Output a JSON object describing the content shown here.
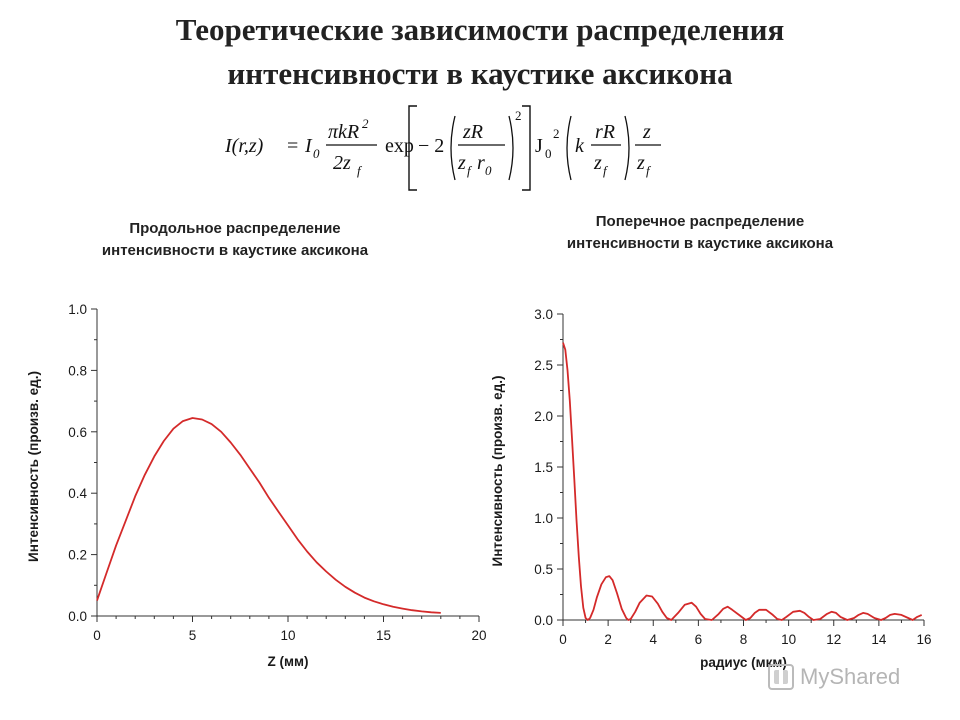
{
  "title_line1": "Теоретические зависимости распределения",
  "title_line2": "интенсивности в каустике аксикона",
  "formula": {
    "lhs": "I(r,z)",
    "eq": "=",
    "i0": "I",
    "i0_sub": "0",
    "frac1_num": "πkR",
    "frac1_num_sup": "2",
    "frac1_den": "2z",
    "frac1_den_sub": "f",
    "exp": "exp",
    "minus2": "− 2",
    "frac2_num": "zR",
    "frac2_den": "z",
    "frac2_den_sub": "f",
    "frac2_den_r": "r",
    "frac2_den_r_sub": "0",
    "sq": "2",
    "j0": "J",
    "j0_sub": "0",
    "j0_sup": "2",
    "k": "k",
    "frac3_num": "rR",
    "frac3_den": "z",
    "frac3_den_sub": "f",
    "frac4_num": "z",
    "frac4_den": "z",
    "frac4_den_sub": "f"
  },
  "subtitle_left_line1": "Продольное распределение",
  "subtitle_left_line2": "интенсивности в каустике аксикона",
  "subtitle_right_line1": "Поперечное распределение",
  "subtitle_right_line2": "интенсивности в каустике аксикона",
  "watermark": "MyShared",
  "chart_data": [
    {
      "type": "line",
      "xlabel": "Z (мм)",
      "ylabel": "Интенсивность (произв. ед.)",
      "xlim": [
        0,
        20
      ],
      "ylim": [
        0,
        1.0
      ],
      "xticks": [
        "0",
        "5",
        "10",
        "15",
        "20"
      ],
      "yticks": [
        "0.0",
        "0.2",
        "0.4",
        "0.6",
        "0.8",
        "1.0"
      ],
      "grid": false,
      "color": "#d42a2a",
      "series": [
        {
          "x": [
            0,
            0.5,
            1,
            1.5,
            2,
            2.5,
            3,
            3.5,
            4,
            4.5,
            5,
            5.5,
            6,
            6.5,
            7,
            7.5,
            8,
            8.5,
            9,
            9.5,
            10,
            10.5,
            11,
            11.5,
            12,
            12.5,
            13,
            13.5,
            14,
            14.5,
            15,
            15.5,
            16,
            16.5,
            17,
            17.5,
            18
          ],
          "y": [
            0.05,
            0.14,
            0.23,
            0.31,
            0.39,
            0.46,
            0.52,
            0.57,
            0.61,
            0.635,
            0.645,
            0.64,
            0.625,
            0.6,
            0.565,
            0.525,
            0.48,
            0.435,
            0.385,
            0.34,
            0.295,
            0.25,
            0.21,
            0.175,
            0.145,
            0.118,
            0.095,
            0.076,
            0.06,
            0.048,
            0.038,
            0.03,
            0.024,
            0.019,
            0.015,
            0.012,
            0.01
          ]
        }
      ]
    },
    {
      "type": "line",
      "xlabel": "радиус (мкм)",
      "ylabel": "Интенсивность (произв. ед.)",
      "xlim": [
        0,
        16
      ],
      "ylim": [
        0,
        3.0
      ],
      "xticks": [
        "0",
        "2",
        "4",
        "6",
        "8",
        "10",
        "12",
        "14",
        "16"
      ],
      "yticks": [
        "0.0",
        "0.5",
        "1.0",
        "1.5",
        "2.0",
        "2.5",
        "3.0"
      ],
      "grid": false,
      "color": "#d42a2a",
      "series": [
        {
          "x": [
            0,
            0.1,
            0.2,
            0.3,
            0.4,
            0.5,
            0.6,
            0.7,
            0.8,
            0.9,
            1.0,
            1.1,
            1.2,
            1.35,
            1.5,
            1.7,
            1.9,
            2.05,
            2.2,
            2.4,
            2.6,
            2.8,
            2.9,
            3.0,
            3.2,
            3.4,
            3.7,
            3.95,
            4.2,
            4.4,
            4.6,
            4.8,
            5.1,
            5.4,
            5.7,
            5.9,
            6.1,
            6.3,
            6.6,
            6.9,
            7.1,
            7.3,
            7.5,
            7.8,
            8.1,
            8.3,
            8.5,
            8.7,
            9.0,
            9.3,
            9.5,
            9.7,
            9.9,
            10.2,
            10.5,
            10.7,
            10.9,
            11.1,
            11.4,
            11.7,
            11.9,
            12.1,
            12.3,
            12.6,
            12.9,
            13.1,
            13.3,
            13.5,
            13.8,
            14.1,
            14.3,
            14.5,
            14.7,
            15.0,
            15.3,
            15.5,
            15.7,
            15.9
          ],
          "y": [
            2.72,
            2.65,
            2.45,
            2.15,
            1.78,
            1.38,
            0.98,
            0.62,
            0.33,
            0.12,
            0.02,
            0.0,
            0.02,
            0.1,
            0.22,
            0.35,
            0.42,
            0.43,
            0.39,
            0.26,
            0.11,
            0.02,
            0.0,
            0.01,
            0.08,
            0.17,
            0.24,
            0.23,
            0.16,
            0.08,
            0.02,
            0.0,
            0.07,
            0.15,
            0.17,
            0.13,
            0.06,
            0.01,
            0.0,
            0.06,
            0.11,
            0.13,
            0.1,
            0.05,
            0.0,
            0.02,
            0.07,
            0.1,
            0.1,
            0.05,
            0.01,
            0.0,
            0.03,
            0.08,
            0.09,
            0.07,
            0.03,
            0.0,
            0.01,
            0.06,
            0.08,
            0.07,
            0.03,
            0.0,
            0.02,
            0.05,
            0.07,
            0.06,
            0.02,
            0.0,
            0.02,
            0.05,
            0.06,
            0.05,
            0.02,
            0.0,
            0.03,
            0.05
          ]
        }
      ]
    }
  ]
}
